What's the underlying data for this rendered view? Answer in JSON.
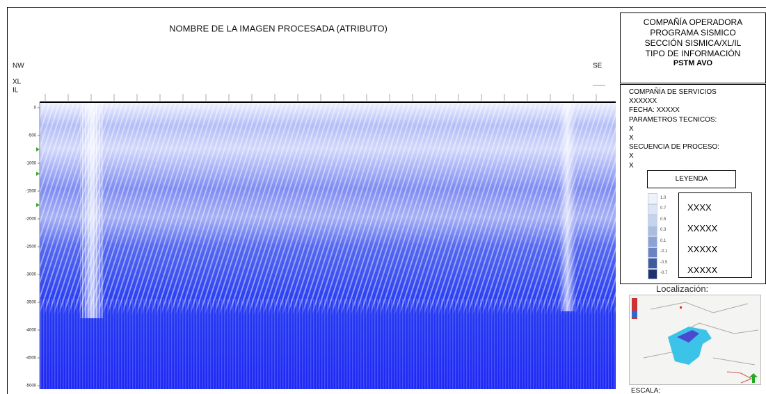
{
  "main": {
    "title": "NOMBRE DE LA IMAGEN PROCESADA (ATRIBUTO)",
    "left_label": "NW",
    "right_label": "SE",
    "row_labels": [
      "XL",
      "IL"
    ],
    "depth_ticks": [
      0,
      -500,
      -1000,
      -1500,
      -2000,
      -2500,
      -3000,
      -3500,
      -4000,
      -4500,
      -5000
    ]
  },
  "header": {
    "lines": [
      "COMPAÑÍA OPERADORA",
      "PROGRAMA SISMICO",
      "SECCIÓN SISMICA/XL/IL",
      "TIPO DE INFORMACIÓN"
    ],
    "emphasis": "PSTM AVO"
  },
  "info": {
    "lines": [
      "COMPAÑÍA DE SERVICIOS",
      "XXXXXX",
      "FECHA: XXXXX",
      "PARAMETROS TECNICOS:",
      "X",
      "X",
      "SECUENCIA DE PROCESO:",
      "X",
      "X"
    ]
  },
  "legend": {
    "title": "LEYENDA",
    "scale_labels": [
      "1.0",
      "0.7",
      "0.5",
      "0.3",
      "0.1",
      "-0.1",
      "-0.5",
      "-0.7"
    ],
    "entries": [
      "XXXX",
      "XXXXX",
      "XXXXX",
      "XXXXX"
    ]
  },
  "location": {
    "title": "Localización:"
  },
  "scale": {
    "label": "ESCALA:"
  }
}
